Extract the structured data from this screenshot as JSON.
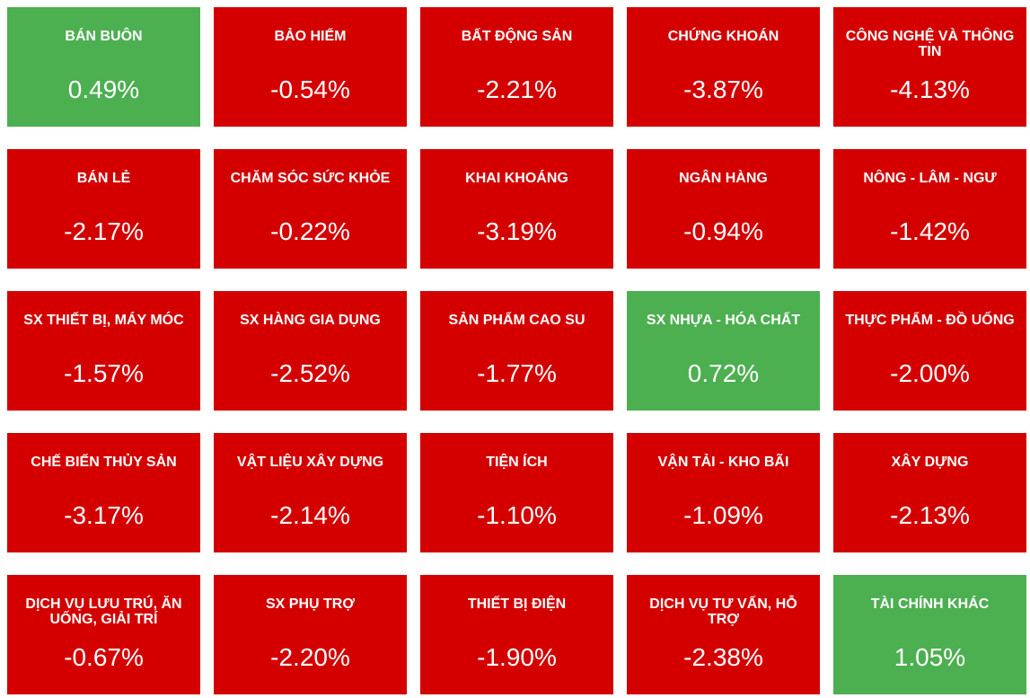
{
  "tiles": [
    {
      "name": "BÁN BUÔN",
      "value": "0.49%",
      "color": "#4caf50"
    },
    {
      "name": "BẢO HIỂM",
      "value": "-0.54%",
      "color": "#d40000"
    },
    {
      "name": "BẤT ĐỘNG SẢN",
      "value": "-2.21%",
      "color": "#d40000"
    },
    {
      "name": "CHỨNG KHOÁN",
      "value": "-3.87%",
      "color": "#d40000"
    },
    {
      "name": "CÔNG NGHỆ VÀ THÔNG TIN",
      "value": "-4.13%",
      "color": "#d40000"
    },
    {
      "name": "BÁN LẺ",
      "value": "-2.17%",
      "color": "#d40000"
    },
    {
      "name": "CHĂM SÓC SỨC KHỎE",
      "value": "-0.22%",
      "color": "#d40000"
    },
    {
      "name": "KHAI KHOÁNG",
      "value": "-3.19%",
      "color": "#d40000"
    },
    {
      "name": "NGÂN HÀNG",
      "value": "-0.94%",
      "color": "#d40000"
    },
    {
      "name": "NÔNG - LÂM - NGƯ",
      "value": "-1.42%",
      "color": "#d40000"
    },
    {
      "name": "SX THIẾT BỊ, MÁY MÓC",
      "value": "-1.57%",
      "color": "#d40000"
    },
    {
      "name": "SX HÀNG GIA DỤNG",
      "value": "-2.52%",
      "color": "#d40000"
    },
    {
      "name": "SẢN PHẨM CAO SU",
      "value": "-1.77%",
      "color": "#d40000"
    },
    {
      "name": "SX NHỰA - HÓA CHẤT",
      "value": "0.72%",
      "color": "#4caf50"
    },
    {
      "name": "THỰC PHẨM - ĐỒ UỐNG",
      "value": "-2.00%",
      "color": "#d40000"
    },
    {
      "name": "CHẾ BIẾN THỦY SẢN",
      "value": "-3.17%",
      "color": "#d40000"
    },
    {
      "name": "VẬT LIỆU XÂY DỰNG",
      "value": "-2.14%",
      "color": "#d40000"
    },
    {
      "name": "TIỆN ÍCH",
      "value": "-1.10%",
      "color": "#d40000"
    },
    {
      "name": "VẬN TẢI - KHO BÃI",
      "value": "-1.09%",
      "color": "#d40000"
    },
    {
      "name": "XÂY DỰNG",
      "value": "-2.13%",
      "color": "#d40000"
    },
    {
      "name": "DỊCH VỤ LƯU TRÚ, ĂN UỐNG, GIẢI TRÍ",
      "value": "-0.67%",
      "color": "#d40000"
    },
    {
      "name": "SX PHỤ TRỢ",
      "value": "-2.20%",
      "color": "#d40000"
    },
    {
      "name": "THIẾT BỊ ĐIỆN",
      "value": "-1.90%",
      "color": "#d40000"
    },
    {
      "name": "DỊCH VỤ TƯ VẤN, HỖ TRỢ",
      "value": "-2.38%",
      "color": "#d40000"
    },
    {
      "name": "TÀI CHÍNH KHÁC",
      "value": "1.05%",
      "color": "#4caf50"
    }
  ]
}
